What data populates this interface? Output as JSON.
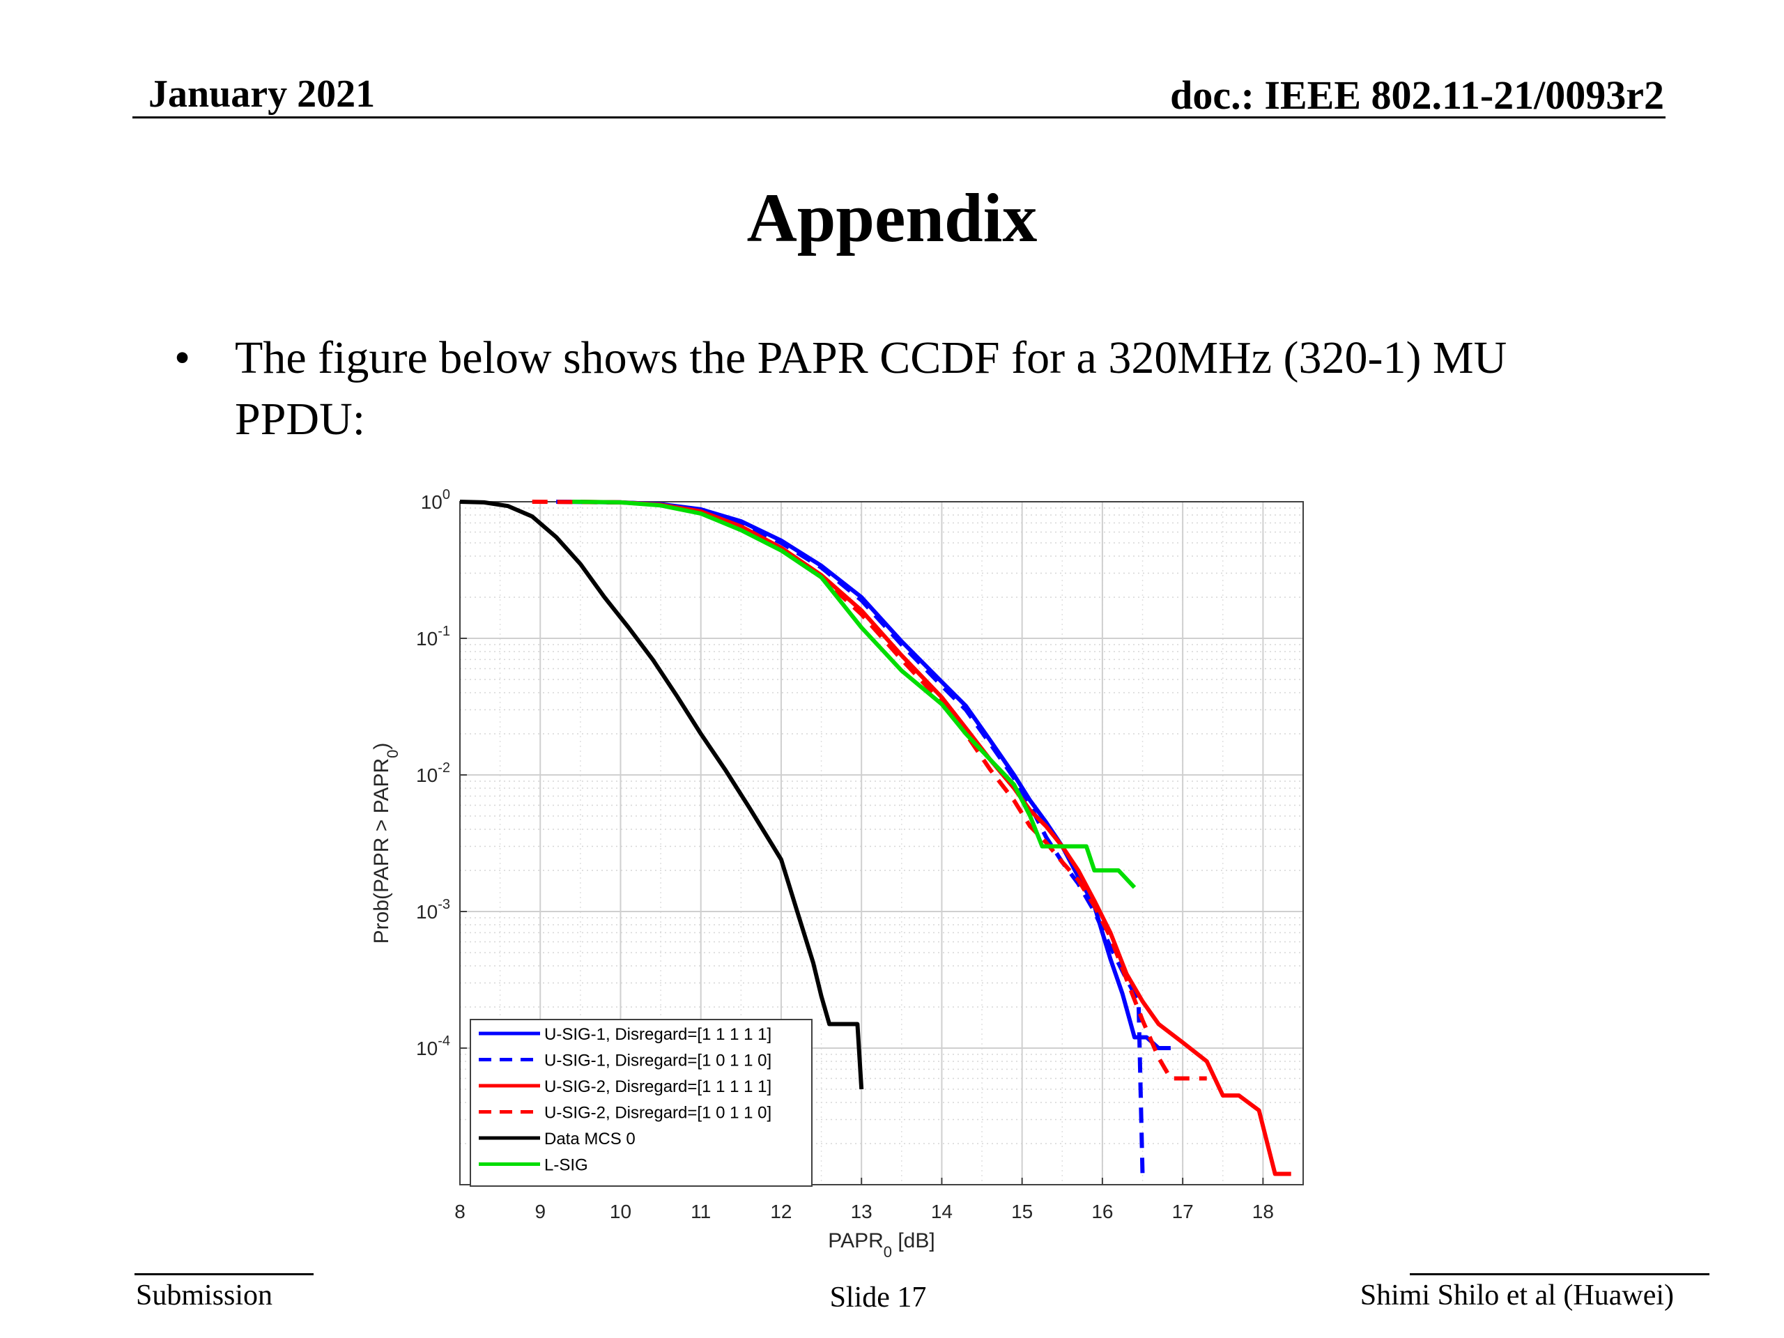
{
  "header": {
    "date": "January 2021",
    "doc": "doc.: IEEE 802.11-21/0093r2"
  },
  "title": "Appendix",
  "bullet": {
    "symbol": "•",
    "text": "The figure below shows the PAPR CCDF for a 320MHz (320-1) MU PPDU:"
  },
  "footer": {
    "left": "Submission",
    "center": "Slide 17",
    "right": "Shimi Shilo et al (Huawei)"
  },
  "chart_data": {
    "type": "line",
    "xlabel_main": "PAPR",
    "xlabel_sub": "0",
    "xlabel_unit": " [dB]",
    "ylabel_pre": "Prob(PAPR > PAPR",
    "ylabel_sub": "0",
    "ylabel_post": ")",
    "xlim": [
      8,
      18.5
    ],
    "ylim": [
      1e-05,
      1
    ],
    "yscale": "log",
    "xticks": [
      8,
      9,
      10,
      11,
      12,
      13,
      14,
      15,
      16,
      17,
      18
    ],
    "yticks": [
      {
        "value": 1,
        "base": "10",
        "exp": "0"
      },
      {
        "value": 0.1,
        "base": "10",
        "exp": "-1"
      },
      {
        "value": 0.01,
        "base": "10",
        "exp": "-2"
      },
      {
        "value": 0.001,
        "base": "10",
        "exp": "-3"
      },
      {
        "value": 0.0001,
        "base": "10",
        "exp": "-4"
      }
    ],
    "grid": true,
    "legend_position": "bottom-left",
    "series": [
      {
        "name": "U-SIG-1, Disregard=[1 1 1 1 1]",
        "color": "#0000ff",
        "dash": false,
        "points": [
          [
            9.2,
            1
          ],
          [
            10,
            0.99
          ],
          [
            10.5,
            0.96
          ],
          [
            11,
            0.88
          ],
          [
            11.5,
            0.72
          ],
          [
            12,
            0.52
          ],
          [
            12.5,
            0.34
          ],
          [
            13,
            0.2
          ],
          [
            13.5,
            0.095
          ],
          [
            14,
            0.048
          ],
          [
            14.3,
            0.032
          ],
          [
            14.6,
            0.018
          ],
          [
            14.9,
            0.01
          ],
          [
            15.1,
            0.0065
          ],
          [
            15.3,
            0.0045
          ],
          [
            15.5,
            0.003
          ],
          [
            15.7,
            0.0018
          ],
          [
            15.9,
            0.0011
          ],
          [
            16.0,
            0.0007
          ],
          [
            16.1,
            0.00045
          ],
          [
            16.25,
            0.00025
          ],
          [
            16.4,
            0.00012
          ],
          [
            16.55,
            0.00012
          ],
          [
            16.7,
            0.0001
          ],
          [
            16.85,
            0.0001
          ]
        ]
      },
      {
        "name": "U-SIG-1, Disregard=[1 0 1 1 0]",
        "color": "#0000ff",
        "dash": true,
        "points": [
          [
            9.2,
            1
          ],
          [
            10,
            0.99
          ],
          [
            10.5,
            0.96
          ],
          [
            11,
            0.87
          ],
          [
            11.5,
            0.7
          ],
          [
            12,
            0.5
          ],
          [
            12.5,
            0.33
          ],
          [
            13,
            0.19
          ],
          [
            13.5,
            0.09
          ],
          [
            14,
            0.045
          ],
          [
            14.3,
            0.03
          ],
          [
            14.6,
            0.017
          ],
          [
            14.9,
            0.0095
          ],
          [
            15.1,
            0.006
          ],
          [
            15.3,
            0.0035
          ],
          [
            15.5,
            0.0023
          ],
          [
            15.7,
            0.0016
          ],
          [
            15.9,
            0.001
          ],
          [
            16.1,
            0.00055
          ],
          [
            16.3,
            0.00032
          ],
          [
            16.45,
            0.00022
          ],
          [
            16.5,
            1.2e-05
          ]
        ]
      },
      {
        "name": "U-SIG-2, Disregard=[1 1 1 1 1]",
        "color": "#ff0000",
        "dash": false,
        "points": [
          [
            9.5,
            1
          ],
          [
            10,
            0.99
          ],
          [
            10.5,
            0.95
          ],
          [
            11,
            0.85
          ],
          [
            11.5,
            0.66
          ],
          [
            12,
            0.46
          ],
          [
            12.5,
            0.29
          ],
          [
            13,
            0.16
          ],
          [
            13.5,
            0.075
          ],
          [
            14,
            0.037
          ],
          [
            14.3,
            0.022
          ],
          [
            14.6,
            0.013
          ],
          [
            14.9,
            0.008
          ],
          [
            15.1,
            0.0055
          ],
          [
            15.3,
            0.0042
          ],
          [
            15.5,
            0.003
          ],
          [
            15.7,
            0.002
          ],
          [
            15.9,
            0.0012
          ],
          [
            16.1,
            0.0007
          ],
          [
            16.3,
            0.00035
          ],
          [
            16.5,
            0.00022
          ],
          [
            16.7,
            0.00015
          ],
          [
            17.0,
            0.00011
          ],
          [
            17.3,
            8e-05
          ],
          [
            17.5,
            4.5e-05
          ],
          [
            17.7,
            4.5e-05
          ],
          [
            17.95,
            3.5e-05
          ],
          [
            18.15,
            1.2e-05
          ],
          [
            18.35,
            1.2e-05
          ]
        ]
      },
      {
        "name": "U-SIG-2, Disregard=[1 0 1 1 0]",
        "color": "#ff0000",
        "dash": true,
        "points": [
          [
            8.9,
            1
          ],
          [
            10,
            0.99
          ],
          [
            10.5,
            0.95
          ],
          [
            11,
            0.84
          ],
          [
            11.5,
            0.65
          ],
          [
            12,
            0.45
          ],
          [
            12.5,
            0.28
          ],
          [
            13,
            0.15
          ],
          [
            13.5,
            0.07
          ],
          [
            14,
            0.034
          ],
          [
            14.3,
            0.02
          ],
          [
            14.6,
            0.011
          ],
          [
            14.9,
            0.0065
          ],
          [
            15.1,
            0.0042
          ],
          [
            15.3,
            0.0032
          ],
          [
            15.5,
            0.0023
          ],
          [
            15.7,
            0.0017
          ],
          [
            15.9,
            0.0011
          ],
          [
            16.1,
            0.00065
          ],
          [
            16.3,
            0.00032
          ],
          [
            16.5,
            0.00016
          ],
          [
            16.7,
            8.5e-05
          ],
          [
            16.85,
            6e-05
          ],
          [
            17.05,
            6e-05
          ],
          [
            17.3,
            6e-05
          ]
        ]
      },
      {
        "name": "Data MCS 0",
        "color": "#000000",
        "dash": false,
        "points": [
          [
            8,
            1
          ],
          [
            8.3,
            0.99
          ],
          [
            8.6,
            0.93
          ],
          [
            8.9,
            0.78
          ],
          [
            9.2,
            0.55
          ],
          [
            9.5,
            0.35
          ],
          [
            9.8,
            0.2
          ],
          [
            10.1,
            0.12
          ],
          [
            10.4,
            0.07
          ],
          [
            10.7,
            0.038
          ],
          [
            11.0,
            0.02
          ],
          [
            11.3,
            0.011
          ],
          [
            11.6,
            0.0058
          ],
          [
            11.9,
            0.003
          ],
          [
            12.0,
            0.0024
          ],
          [
            12.2,
            0.001
          ],
          [
            12.4,
            0.00042
          ],
          [
            12.5,
            0.00024
          ],
          [
            12.6,
            0.00015
          ],
          [
            12.8,
            0.00015
          ],
          [
            12.95,
            0.00015
          ],
          [
            13.0,
            5e-05
          ]
        ]
      },
      {
        "name": "L-SIG",
        "color": "#00dd00",
        "dash": false,
        "points": [
          [
            9.4,
            1
          ],
          [
            10,
            0.99
          ],
          [
            10.5,
            0.94
          ],
          [
            11,
            0.82
          ],
          [
            11.5,
            0.62
          ],
          [
            12,
            0.44
          ],
          [
            12.5,
            0.28
          ],
          [
            13,
            0.12
          ],
          [
            13.5,
            0.058
          ],
          [
            14,
            0.033
          ],
          [
            14.3,
            0.02
          ],
          [
            14.6,
            0.013
          ],
          [
            14.9,
            0.0085
          ],
          [
            15.1,
            0.005
          ],
          [
            15.25,
            0.003
          ],
          [
            15.5,
            0.003
          ],
          [
            15.8,
            0.003
          ],
          [
            15.9,
            0.002
          ],
          [
            16.2,
            0.002
          ],
          [
            16.4,
            0.0015
          ]
        ]
      }
    ]
  }
}
